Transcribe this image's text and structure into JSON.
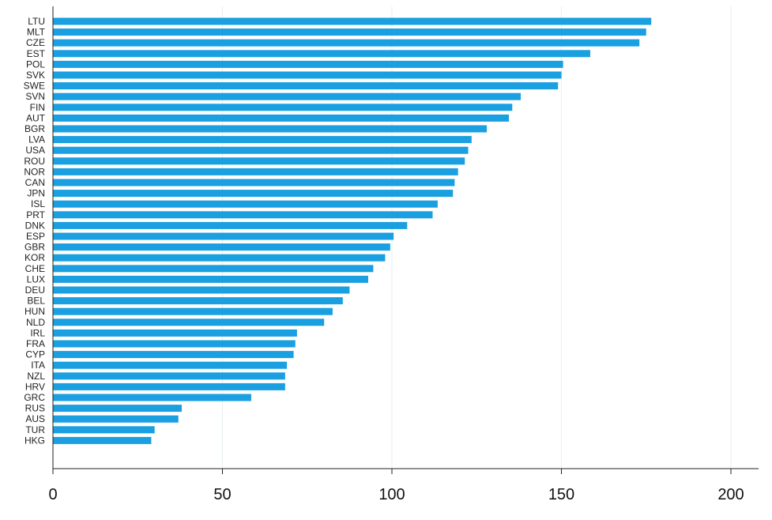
{
  "chart_data": {
    "type": "bar",
    "orientation": "horizontal",
    "categories": [
      "LTU",
      "MLT",
      "CZE",
      "EST",
      "POL",
      "SVK",
      "SWE",
      "SVN",
      "FIN",
      "AUT",
      "BGR",
      "LVA",
      "USA",
      "ROU",
      "NOR",
      "CAN",
      "JPN",
      "ISL",
      "PRT",
      "DNK",
      "ESP",
      "GBR",
      "KOR",
      "CHE",
      "LUX",
      "DEU",
      "BEL",
      "HUN",
      "NLD",
      "IRL",
      "FRA",
      "CYP",
      "ITA",
      "NZL",
      "HRV",
      "GRC",
      "RUS",
      "AUS",
      "TUR",
      "HKG"
    ],
    "values": [
      176.5,
      175,
      173,
      158.5,
      150.5,
      150,
      149,
      138,
      135.5,
      134.5,
      128,
      123.5,
      122.5,
      121.5,
      119.5,
      118.5,
      118,
      113.5,
      112,
      104.5,
      100.5,
      99.5,
      98,
      94.5,
      93,
      87.5,
      85.5,
      82.5,
      80,
      72,
      71.5,
      71,
      69,
      68.5,
      68.5,
      58.5,
      38,
      37,
      30,
      29
    ],
    "xlim": [
      0,
      205
    ],
    "x_ticks": [
      0,
      50,
      100,
      150,
      200
    ],
    "x_tick_labels": [
      "0",
      "50",
      "100",
      "150",
      "200"
    ],
    "grid": "vertical",
    "bar_color": "#1a9fe0",
    "title": "",
    "xlabel": "",
    "ylabel": ""
  }
}
